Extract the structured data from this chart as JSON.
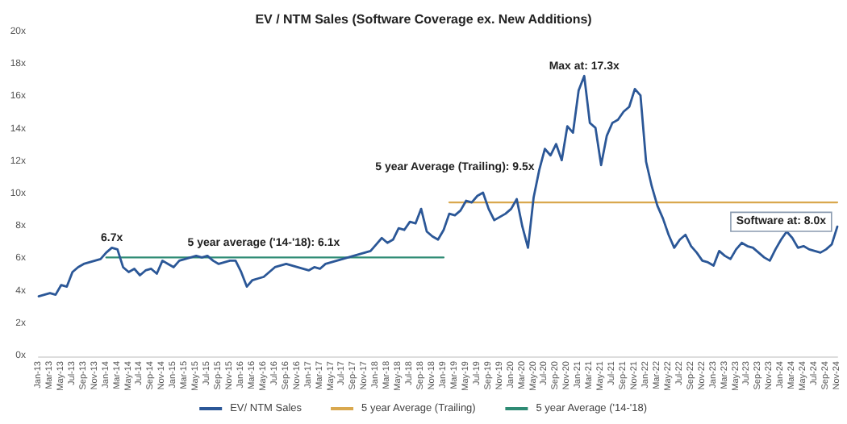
{
  "chart_data": {
    "type": "line",
    "title": "EV / NTM Sales (Software Coverage ex. New Additions)",
    "categories": [
      "Jan-13",
      null,
      "Mar-13",
      null,
      "May-13",
      null,
      "Jul-13",
      null,
      "Sep-13",
      null,
      "Nov-13",
      null,
      "Jan-14",
      null,
      "Mar-14",
      null,
      "May-14",
      null,
      "Jul-14",
      null,
      "Sep-14",
      null,
      "Nov-14",
      null,
      "Jan-15",
      null,
      "Mar-15",
      null,
      "May-15",
      null,
      "Jul-15",
      null,
      "Sep-15",
      null,
      "Nov-15",
      null,
      "Jan-16",
      null,
      "Mar-16",
      null,
      "May-16",
      null,
      "Jul-16",
      null,
      "Sep-16",
      null,
      "Nov-16",
      null,
      "Jan-17",
      null,
      "Mar-17",
      null,
      "May-17",
      null,
      "Jul-17",
      null,
      "Sep-17",
      null,
      "Nov-17",
      null,
      "Jan-18",
      null,
      "Mar-18",
      null,
      "May-18",
      null,
      "Jul-18",
      null,
      "Sep-18",
      null,
      "Nov-18",
      null,
      "Jan-19",
      null,
      "Mar-19",
      null,
      "May-19",
      null,
      "Jul-19",
      null,
      "Sep-19",
      null,
      "Nov-19",
      null,
      "Jan-20",
      null,
      "Mar-20",
      null,
      "May-20",
      null,
      "Jul-20",
      null,
      "Sep-20",
      null,
      "Nov-20",
      null,
      "Jan-21",
      null,
      "Mar-21",
      null,
      "May-21",
      null,
      "Jul-21",
      null,
      "Sep-21",
      null,
      "Nov-21",
      null,
      "Jan-22",
      null,
      "Mar-22",
      null,
      "May-22",
      null,
      "Jul-22",
      null,
      "Sep-22",
      null,
      "Nov-22",
      null,
      "Jan-23",
      null,
      "Mar-23",
      null,
      "May-23",
      null,
      "Jul-23",
      null,
      "Sep-23",
      null,
      "Nov-23",
      null,
      "Jan-24",
      null,
      "Mar-24",
      null,
      "May-24",
      null,
      "Jul-24",
      null,
      "Sep-24",
      null,
      "Nov-24"
    ],
    "series": [
      {
        "name": "EV/ NTM Sales",
        "color": "#2b5797",
        "values": [
          3.7,
          3.8,
          3.9,
          3.8,
          4.4,
          4.3,
          5.2,
          5.5,
          5.7,
          5.8,
          5.9,
          6.0,
          6.4,
          6.7,
          6.6,
          5.5,
          5.2,
          5.4,
          5.0,
          5.3,
          5.4,
          5.1,
          5.9,
          5.7,
          5.5,
          5.9,
          6.0,
          6.1,
          6.2,
          6.1,
          6.2,
          5.9,
          5.7,
          5.8,
          5.9,
          5.9,
          5.2,
          4.3,
          4.7,
          4.8,
          4.9,
          5.2,
          5.5,
          5.6,
          5.7,
          5.6,
          5.5,
          5.4,
          5.3,
          5.5,
          5.4,
          5.7,
          5.8,
          5.9,
          6.0,
          6.1,
          6.2,
          6.3,
          6.4,
          6.5,
          6.9,
          7.3,
          7.0,
          7.2,
          7.9,
          7.8,
          8.3,
          8.2,
          9.1,
          7.7,
          7.4,
          7.2,
          7.8,
          8.8,
          8.7,
          9.0,
          9.6,
          9.5,
          9.9,
          10.1,
          9.1,
          8.4,
          8.6,
          8.8,
          9.1,
          9.7,
          8.0,
          6.7,
          9.8,
          11.5,
          12.8,
          12.4,
          13.1,
          12.1,
          14.2,
          13.8,
          16.4,
          17.3,
          14.4,
          14.1,
          11.8,
          13.6,
          14.4,
          14.6,
          15.1,
          15.4,
          16.5,
          16.1,
          12.0,
          10.5,
          9.3,
          8.5,
          7.5,
          6.7,
          7.2,
          7.5,
          6.8,
          6.4,
          5.9,
          5.8,
          5.6,
          6.5,
          6.2,
          6.0,
          6.6,
          7.0,
          6.8,
          6.7,
          6.4,
          6.1,
          5.9,
          6.6,
          7.2,
          7.7,
          7.3,
          6.7,
          6.8,
          6.6,
          6.5,
          6.4,
          6.6,
          6.9,
          8.0
        ]
      },
      {
        "name": "5 year Average (Trailing)",
        "color": "#d9a84e",
        "values": [
          null,
          null,
          null,
          null,
          null,
          null,
          null,
          null,
          null,
          null,
          null,
          null,
          null,
          null,
          null,
          null,
          null,
          null,
          null,
          null,
          null,
          null,
          null,
          null,
          null,
          null,
          null,
          null,
          null,
          null,
          null,
          null,
          null,
          null,
          null,
          null,
          null,
          null,
          null,
          null,
          null,
          null,
          null,
          null,
          null,
          null,
          null,
          null,
          null,
          null,
          null,
          null,
          null,
          null,
          null,
          null,
          null,
          null,
          null,
          null,
          null,
          null,
          null,
          null,
          null,
          null,
          null,
          null,
          null,
          null,
          null,
          null,
          null,
          9.5,
          9.5,
          9.5,
          9.5,
          9.5,
          9.5,
          9.5,
          9.5,
          9.5,
          9.5,
          9.5,
          9.5,
          9.5,
          9.5,
          9.5,
          9.5,
          9.5,
          9.5,
          9.5,
          9.5,
          9.5,
          9.5,
          9.5,
          9.5,
          9.5,
          9.5,
          9.5,
          9.5,
          9.5,
          9.5,
          9.5,
          9.5,
          9.5,
          9.5,
          9.5,
          9.5,
          9.5,
          9.5,
          9.5,
          9.5,
          9.5,
          9.5,
          9.5,
          9.5,
          9.5,
          9.5,
          9.5,
          9.5,
          9.5,
          9.5,
          9.5,
          9.5,
          9.5,
          9.5,
          9.5,
          9.5,
          9.5,
          9.5,
          9.5,
          9.5,
          9.5,
          9.5,
          9.5,
          9.5,
          9.5,
          9.5,
          9.5,
          9.5,
          9.5,
          9.5
        ]
      },
      {
        "name": "5 year Average ('14-'18)",
        "color": "#2e8b74",
        "values": [
          null,
          null,
          null,
          null,
          null,
          null,
          null,
          null,
          null,
          null,
          null,
          null,
          6.1,
          6.1,
          6.1,
          6.1,
          6.1,
          6.1,
          6.1,
          6.1,
          6.1,
          6.1,
          6.1,
          6.1,
          6.1,
          6.1,
          6.1,
          6.1,
          6.1,
          6.1,
          6.1,
          6.1,
          6.1,
          6.1,
          6.1,
          6.1,
          6.1,
          6.1,
          6.1,
          6.1,
          6.1,
          6.1,
          6.1,
          6.1,
          6.1,
          6.1,
          6.1,
          6.1,
          6.1,
          6.1,
          6.1,
          6.1,
          6.1,
          6.1,
          6.1,
          6.1,
          6.1,
          6.1,
          6.1,
          6.1,
          6.1,
          6.1,
          6.1,
          6.1,
          6.1,
          6.1,
          6.1,
          6.1,
          6.1,
          6.1,
          6.1,
          6.1,
          6.1,
          null,
          null,
          null,
          null,
          null,
          null,
          null,
          null,
          null,
          null,
          null,
          null,
          null,
          null,
          null,
          null,
          null,
          null,
          null,
          null,
          null,
          null,
          null,
          null,
          null,
          null,
          null,
          null,
          null,
          null,
          null,
          null,
          null,
          null,
          null,
          null,
          null,
          null,
          null,
          null,
          null,
          null,
          null,
          null,
          null,
          null,
          null,
          null,
          null,
          null,
          null,
          null,
          null,
          null,
          null,
          null,
          null,
          null,
          null,
          null,
          null,
          null,
          null,
          null,
          null,
          null,
          null,
          null,
          null,
          null
        ]
      }
    ],
    "ylim": [
      0,
      20
    ],
    "yticks": [
      {
        "value": 0,
        "label": "0x"
      },
      {
        "value": 2,
        "label": "2x"
      },
      {
        "value": 4,
        "label": "4x"
      },
      {
        "value": 6,
        "label": "6x"
      },
      {
        "value": 8,
        "label": "8x"
      },
      {
        "value": 10,
        "label": "10x"
      },
      {
        "value": 12,
        "label": "12x"
      },
      {
        "value": 14,
        "label": "14x"
      },
      {
        "value": 16,
        "label": "16x"
      },
      {
        "value": 18,
        "label": "18x"
      },
      {
        "value": 20,
        "label": "20x"
      }
    ],
    "annotations": [
      {
        "text": "6.7x",
        "y": 6.7
      },
      {
        "text": "5 year average ('14-'18): 6.1x",
        "x": "May-16",
        "y": 6.1
      },
      {
        "text": "5 year Average (Trailing): 9.5x",
        "x": "Mar-19",
        "y": 9.5
      },
      {
        "text": "Max at: 17.3x",
        "y": 17.3
      },
      {
        "text": "Software at: 8.0x",
        "x": "Nov-24",
        "y": 8.0
      }
    ],
    "legend": "bottom",
    "grid": false
  }
}
